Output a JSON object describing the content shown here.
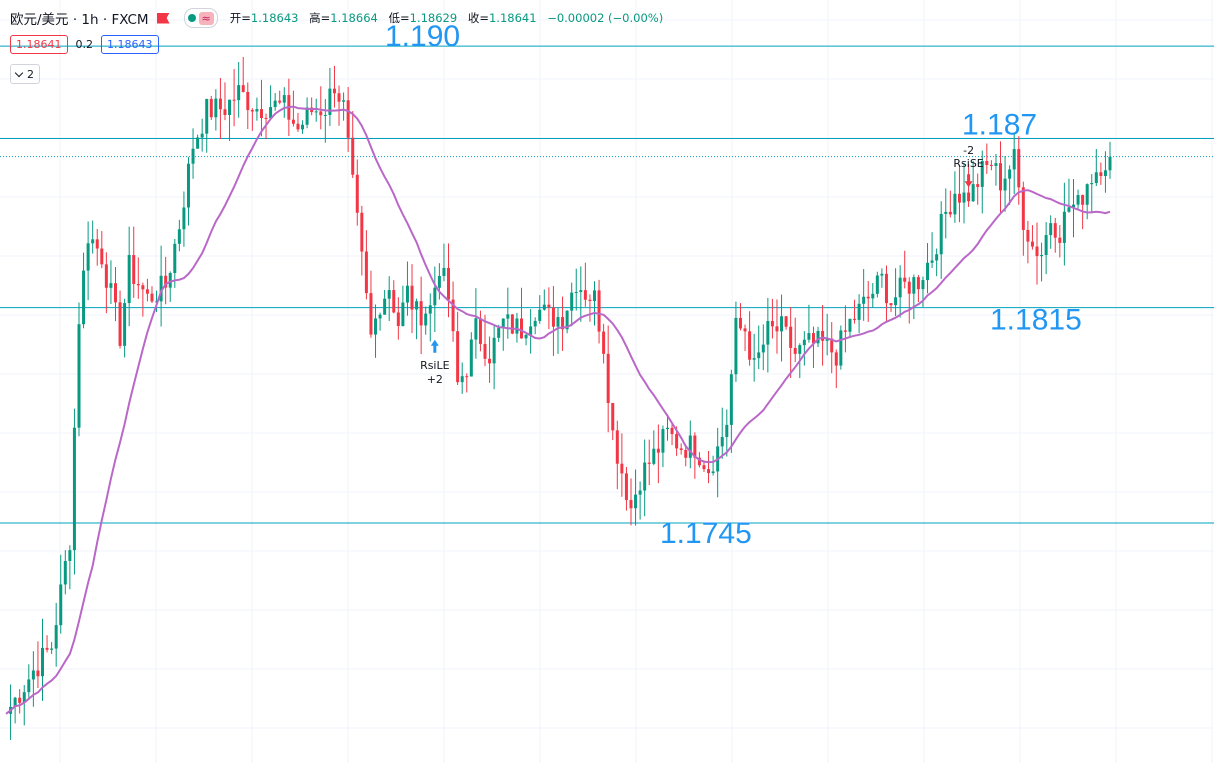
{
  "header": {
    "symbol": "欧元/美元 · 1h · FXCM",
    "ohlc": {
      "open_label": "开=",
      "open": "1.18643",
      "high_label": "高=",
      "high": "1.18664",
      "low_label": "低=",
      "low": "1.18629",
      "close_label": "收=",
      "close": "1.18641",
      "change": "−0.00002 (−0.00%)"
    }
  },
  "quote": {
    "bid": "1.18641",
    "spread": "0.2",
    "ask": "1.18643"
  },
  "indicators_toggle": {
    "count": "2"
  },
  "colors": {
    "up": "#089981",
    "down": "#f23645",
    "ma": "#ba68c8",
    "level_line": "#00a3bf",
    "level_text": "#2196f3",
    "signal_long": "#2196f3",
    "signal_short": "#f23645"
  },
  "chart_data": {
    "type": "candlestick",
    "y_range": [
      1.1667,
      1.1915
    ],
    "levels": [
      {
        "price": 1.19,
        "label": "1.190"
      },
      {
        "price": 1.187,
        "label": "1.187"
      },
      {
        "price": 1.1815,
        "label": "1.1815"
      },
      {
        "price": 1.1745,
        "label": "1.1745"
      }
    ],
    "last_price": 1.18641,
    "anchors": [
      [
        0,
        1.1683
      ],
      [
        3,
        1.169
      ],
      [
        6,
        1.1697
      ],
      [
        10,
        1.1705
      ],
      [
        14,
        1.174
      ],
      [
        16,
        1.1812
      ],
      [
        18,
        1.1839
      ],
      [
        21,
        1.1832
      ],
      [
        25,
        1.1806
      ],
      [
        27,
        1.1828
      ],
      [
        31,
        1.1818
      ],
      [
        35,
        1.1822
      ],
      [
        38,
        1.1842
      ],
      [
        41,
        1.1868
      ],
      [
        44,
        1.1879
      ],
      [
        48,
        1.188
      ],
      [
        51,
        1.1885
      ],
      [
        55,
        1.188
      ],
      [
        58,
        1.1881
      ],
      [
        61,
        1.188
      ],
      [
        64,
        1.1873
      ],
      [
        67,
        1.1879
      ],
      [
        70,
        1.188
      ],
      [
        72,
        1.1888
      ],
      [
        74,
        1.188
      ],
      [
        76,
        1.1854
      ],
      [
        78,
        1.183
      ],
      [
        80,
        1.1805
      ],
      [
        82,
        1.1817
      ],
      [
        84,
        1.1822
      ],
      [
        86,
        1.181
      ],
      [
        88,
        1.182
      ],
      [
        90,
        1.1813
      ],
      [
        93,
        1.1815
      ],
      [
        95,
        1.1829
      ],
      [
        97,
        1.1818
      ],
      [
        99,
        1.179
      ],
      [
        101,
        1.1796
      ],
      [
        103,
        1.1808
      ],
      [
        106,
        1.18
      ],
      [
        109,
        1.181
      ],
      [
        113,
        1.1808
      ],
      [
        116,
        1.1815
      ],
      [
        119,
        1.1812
      ],
      [
        122,
        1.1812
      ],
      [
        125,
        1.1824
      ],
      [
        127,
        1.182
      ],
      [
        129,
        1.1818
      ],
      [
        131,
        1.1803
      ],
      [
        133,
        1.1774
      ],
      [
        135,
        1.1762
      ],
      [
        137,
        1.175
      ],
      [
        139,
        1.176
      ],
      [
        142,
        1.1767
      ],
      [
        145,
        1.1774
      ],
      [
        148,
        1.177
      ],
      [
        151,
        1.177
      ],
      [
        154,
        1.1763
      ],
      [
        156,
        1.1769
      ],
      [
        158,
        1.1778
      ],
      [
        160,
        1.1808
      ],
      [
        162,
        1.1808
      ],
      [
        164,
        1.1795
      ],
      [
        167,
        1.1807
      ],
      [
        170,
        1.1808
      ],
      [
        173,
        1.18
      ],
      [
        176,
        1.1803
      ],
      [
        179,
        1.1803
      ],
      [
        182,
        1.18
      ],
      [
        185,
        1.181
      ],
      [
        188,
        1.1816
      ],
      [
        190,
        1.182
      ],
      [
        192,
        1.1824
      ],
      [
        194,
        1.1817
      ],
      [
        197,
        1.1822
      ],
      [
        200,
        1.1824
      ],
      [
        203,
        1.1832
      ],
      [
        206,
        1.1846
      ],
      [
        208,
        1.1853
      ],
      [
        210,
        1.1851
      ],
      [
        212,
        1.1853
      ],
      [
        214,
        1.1859
      ],
      [
        216,
        1.1862
      ],
      [
        218,
        1.1856
      ],
      [
        221,
        1.1863
      ],
      [
        223,
        1.1844
      ],
      [
        225,
        1.1835
      ],
      [
        227,
        1.1833
      ],
      [
        229,
        1.1844
      ],
      [
        231,
        1.184
      ],
      [
        233,
        1.1848
      ],
      [
        235,
        1.1848
      ],
      [
        237,
        1.1856
      ],
      [
        240,
        1.1862
      ],
      [
        242,
        1.1864
      ]
    ],
    "signals": [
      {
        "index": 94,
        "label": "RsiLE",
        "qty": "+2",
        "side": "long"
      },
      {
        "index": 211,
        "label": "RsiSE",
        "qty": "-2",
        "side": "short"
      }
    ]
  }
}
